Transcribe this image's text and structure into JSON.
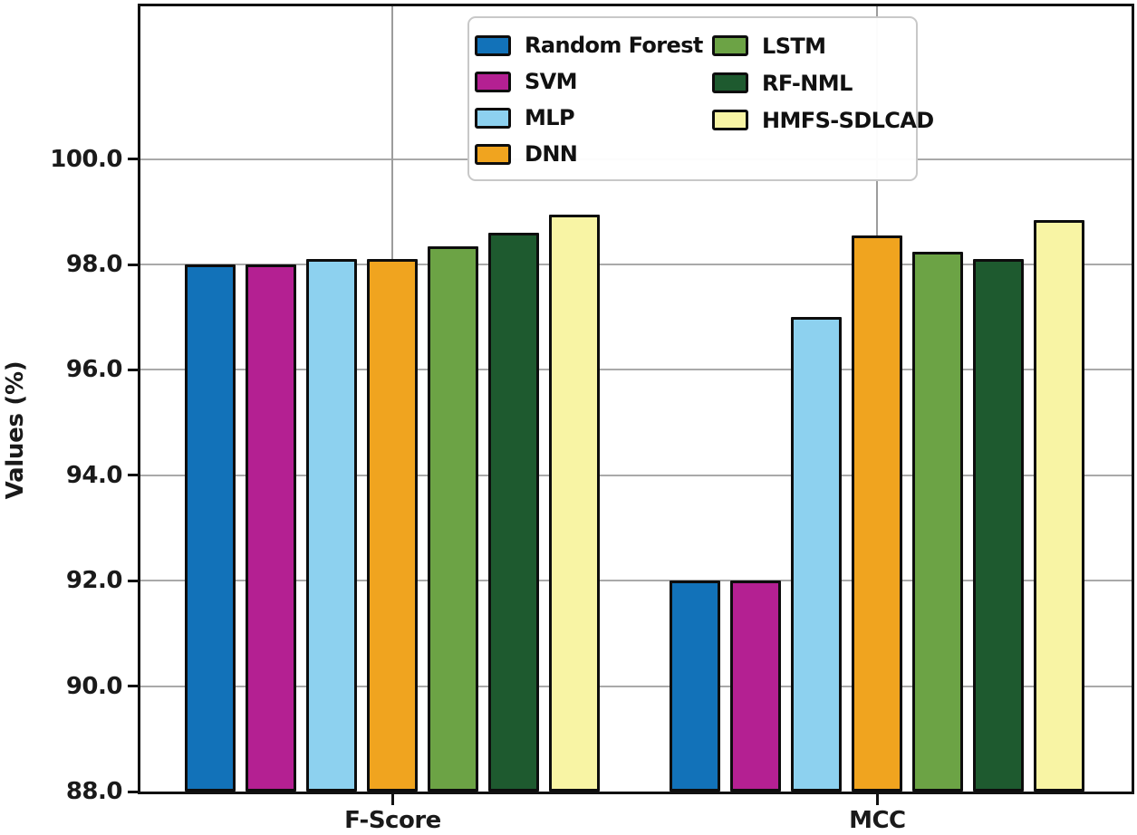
{
  "chart_data": {
    "type": "bar",
    "title": "",
    "xlabel": "",
    "ylabel": "Values (%)",
    "categories": [
      "F-Score",
      "MCC"
    ],
    "series": [
      {
        "name": "Random Forest",
        "color": "#1272b9",
        "values": [
          98.0,
          92.0
        ]
      },
      {
        "name": "SVM",
        "color": "#b42092",
        "values": [
          98.0,
          92.0
        ]
      },
      {
        "name": "MLP",
        "color": "#8dd1ef",
        "values": [
          98.1,
          97.0
        ]
      },
      {
        "name": "DNN",
        "color": "#f0a41f",
        "values": [
          98.1,
          98.55
        ]
      },
      {
        "name": "LSTM",
        "color": "#6ca345",
        "values": [
          98.35,
          98.25
        ]
      },
      {
        "name": "RF-NML",
        "color": "#1e5a2f",
        "values": [
          98.6,
          98.1
        ]
      },
      {
        "name": "HMFS-SDLCAD",
        "color": "#f8f4a4",
        "values": [
          98.95,
          98.85
        ]
      }
    ],
    "ylim": [
      88,
      102.9
    ],
    "yticks": [
      88,
      90,
      92,
      94,
      96,
      98,
      100
    ],
    "ytick_labels": [
      "88.0",
      "90.0",
      "92.0",
      "94.0",
      "96.0",
      "98.0",
      "100.0"
    ],
    "grid": true,
    "legend_position": "upper center",
    "legend_columns": [
      [
        "Random Forest",
        "SVM",
        "MLP",
        "DNN"
      ],
      [
        "LSTM",
        "RF-NML",
        "HMFS-SDLCAD"
      ]
    ],
    "bar_edge_color": "#0d0d0d",
    "grid_color": "#a9a9a9",
    "text_color": "#1a1a1a"
  }
}
